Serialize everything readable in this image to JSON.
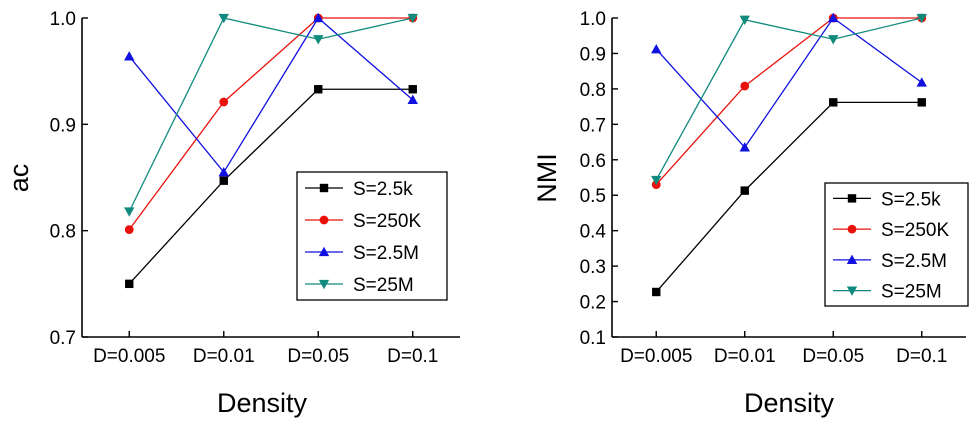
{
  "colors": {
    "S=2.5k": "#000000",
    "S=250K": "#e8120c",
    "S=2.5M": "#1010e0",
    "S=25M": "#118a7e"
  },
  "chart_data": [
    {
      "type": "line",
      "xlabel": "Density",
      "ylabel": "ac",
      "categories": [
        "D=0.005",
        "D=0.01",
        "D=0.05",
        "D=0.1"
      ],
      "ylim": [
        0.7,
        1.0
      ],
      "yticks": [
        "0.7",
        "0.8",
        "0.9",
        "1.0"
      ],
      "grid": false,
      "legend_position": "center-right",
      "series": [
        {
          "name": "S=2.5k",
          "marker": "square",
          "values": [
            0.75,
            0.847,
            0.933,
            0.933
          ]
        },
        {
          "name": "S=250K",
          "marker": "circle",
          "values": [
            0.801,
            0.921,
            1.0,
            1.0
          ]
        },
        {
          "name": "S=2.5M",
          "marker": "triangle-up",
          "values": [
            0.964,
            0.855,
            1.0,
            0.923
          ]
        },
        {
          "name": "S=25M",
          "marker": "triangle-down",
          "values": [
            0.818,
            1.0,
            0.98,
            1.0
          ]
        }
      ]
    },
    {
      "type": "line",
      "xlabel": "Density",
      "ylabel": "NMI",
      "categories": [
        "D=0.005",
        "D=0.01",
        "D=0.05",
        "D=0.1"
      ],
      "ylim": [
        0.1,
        1.0
      ],
      "yticks": [
        "0.1",
        "0.2",
        "0.3",
        "0.4",
        "0.5",
        "0.6",
        "0.7",
        "0.8",
        "0.9",
        "1.0"
      ],
      "grid": false,
      "legend_position": "center-right",
      "series": [
        {
          "name": "S=2.5k",
          "marker": "square",
          "values": [
            0.227,
            0.513,
            0.762,
            0.762
          ]
        },
        {
          "name": "S=250K",
          "marker": "circle",
          "values": [
            0.53,
            0.808,
            1.0,
            1.0
          ]
        },
        {
          "name": "S=2.5M",
          "marker": "triangle-up",
          "values": [
            0.912,
            0.635,
            1.0,
            0.818
          ]
        },
        {
          "name": "S=25M",
          "marker": "triangle-down",
          "values": [
            0.543,
            0.995,
            0.94,
            1.0
          ]
        }
      ]
    }
  ]
}
